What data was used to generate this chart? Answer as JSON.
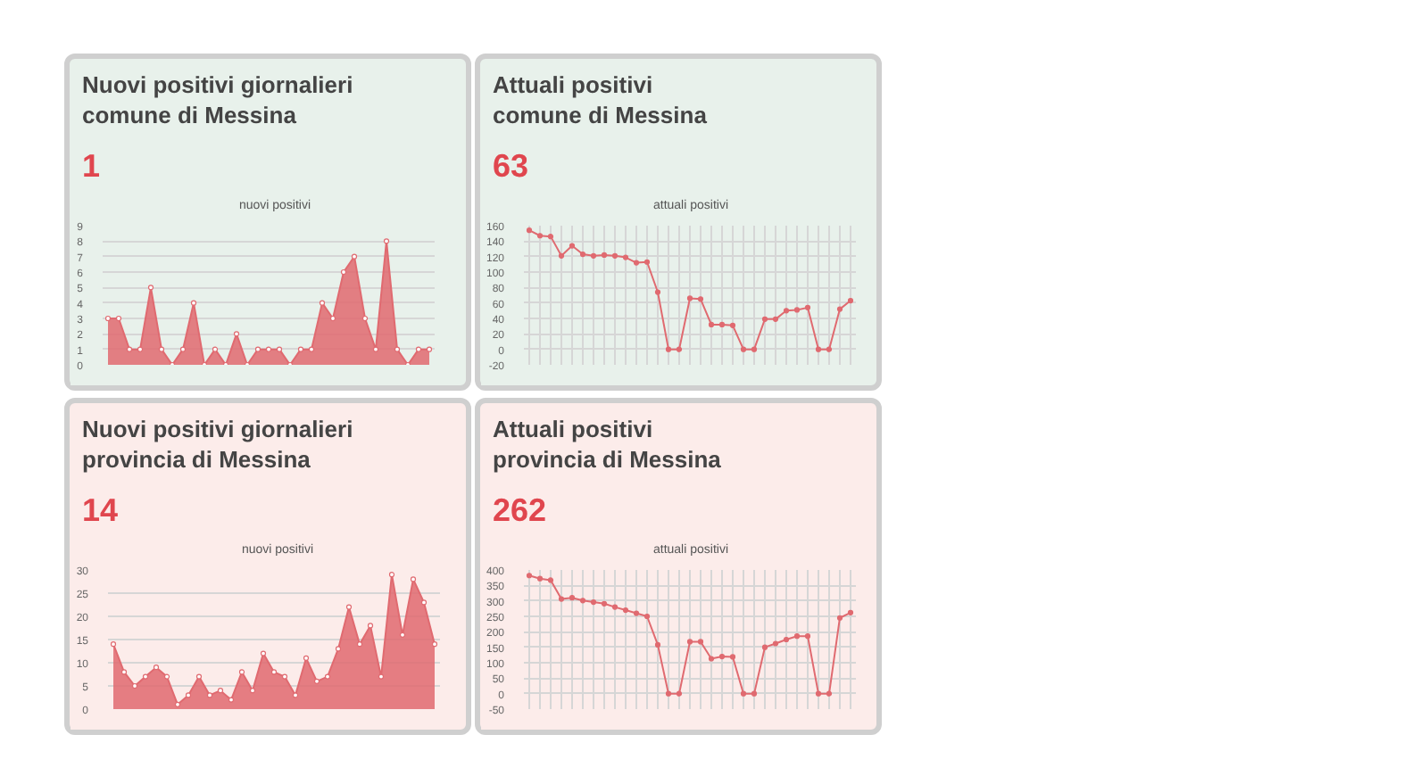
{
  "chart_data": [
    {
      "type": "area",
      "title": "Nuovi positivi giornalieri\ncomune di Messina",
      "subtitle": "1",
      "categories": [
        null,
        null,
        null,
        null,
        null,
        null,
        null,
        null,
        null,
        null,
        null,
        null,
        null,
        null,
        null,
        null,
        null,
        null,
        null,
        null,
        null,
        null,
        null,
        null,
        null,
        null,
        null,
        null,
        null,
        null,
        null
      ],
      "series": [
        {
          "name": "nuovi positivi",
          "color": "#e06a70",
          "values": [
            3,
            3,
            1,
            1,
            5,
            1,
            0,
            1,
            4,
            0,
            1,
            0,
            2,
            0,
            1,
            1,
            1,
            0,
            1,
            1,
            4,
            3,
            6,
            7,
            3,
            1,
            8,
            1,
            0,
            1,
            1
          ]
        }
      ],
      "ylim": [
        0,
        9
      ],
      "yticks": [
        0,
        1,
        2,
        3,
        4,
        5,
        6,
        7,
        8,
        9
      ],
      "grid": "y",
      "legend": "top",
      "marker": "circle",
      "tick_labels": "y"
    },
    {
      "type": "line",
      "title": "Attuali positivi\ncomune di Messina",
      "subtitle": "63",
      "categories": [
        null,
        null,
        null,
        null,
        null,
        null,
        null,
        null,
        null,
        null,
        null,
        null,
        null,
        null,
        null,
        null,
        null,
        null,
        null,
        null,
        null,
        null,
        null,
        null,
        null,
        null,
        null,
        null,
        null,
        null,
        null
      ],
      "series": [
        {
          "name": "attuali positivi",
          "color": "#e06a70",
          "values": [
            154,
            147,
            146,
            121,
            134,
            123,
            121,
            122,
            121,
            119,
            112,
            113,
            74,
            0,
            0,
            66,
            65,
            32,
            32,
            31,
            0,
            0,
            39,
            39,
            50,
            51,
            54,
            0,
            0,
            52,
            63
          ]
        }
      ],
      "ylim": [
        -20,
        160
      ],
      "yticks": [
        -20,
        0,
        20,
        40,
        60,
        80,
        100,
        120,
        140,
        160
      ],
      "grid": true,
      "legend": "top",
      "marker": "circle",
      "tick_labels": "y"
    },
    {
      "type": "area",
      "title": "Nuovi positivi giornalieri\nprovincia di Messina",
      "subtitle": "14",
      "categories": [
        null,
        null,
        null,
        null,
        null,
        null,
        null,
        null,
        null,
        null,
        null,
        null,
        null,
        null,
        null,
        null,
        null,
        null,
        null,
        null,
        null,
        null,
        null,
        null,
        null,
        null,
        null,
        null,
        null,
        null,
        null
      ],
      "series": [
        {
          "name": "nuovi positivi",
          "color": "#e06a70",
          "values": [
            14,
            8,
            5,
            7,
            9,
            7,
            1,
            3,
            7,
            3,
            4,
            2,
            8,
            4,
            12,
            8,
            7,
            3,
            11,
            6,
            7,
            13,
            22,
            14,
            18,
            7,
            29,
            16,
            28,
            23,
            14
          ]
        }
      ],
      "ylim": [
        0,
        30
      ],
      "yticks": [
        0,
        5,
        10,
        15,
        20,
        25,
        30
      ],
      "grid": "y",
      "legend": "top",
      "marker": "circle",
      "tick_labels": "y"
    },
    {
      "type": "line",
      "title": "Attuali positivi\nprovincia di Messina",
      "subtitle": "262",
      "categories": [
        null,
        null,
        null,
        null,
        null,
        null,
        null,
        null,
        null,
        null,
        null,
        null,
        null,
        null,
        null,
        null,
        null,
        null,
        null,
        null,
        null,
        null,
        null,
        null,
        null,
        null,
        null,
        null,
        null,
        null,
        null
      ],
      "series": [
        {
          "name": "attuali positivi",
          "color": "#e06a70",
          "values": [
            382,
            372,
            367,
            306,
            310,
            301,
            296,
            291,
            280,
            270,
            260,
            250,
            158,
            0,
            0,
            168,
            168,
            113,
            120,
            119,
            0,
            0,
            150,
            162,
            175,
            186,
            186,
            0,
            0,
            245,
            262
          ]
        }
      ],
      "ylim": [
        -50,
        400
      ],
      "yticks": [
        -50,
        0,
        50,
        100,
        150,
        200,
        250,
        300,
        350,
        400
      ],
      "grid": true,
      "legend": "top",
      "marker": "circle",
      "tick_labels": "y"
    }
  ]
}
